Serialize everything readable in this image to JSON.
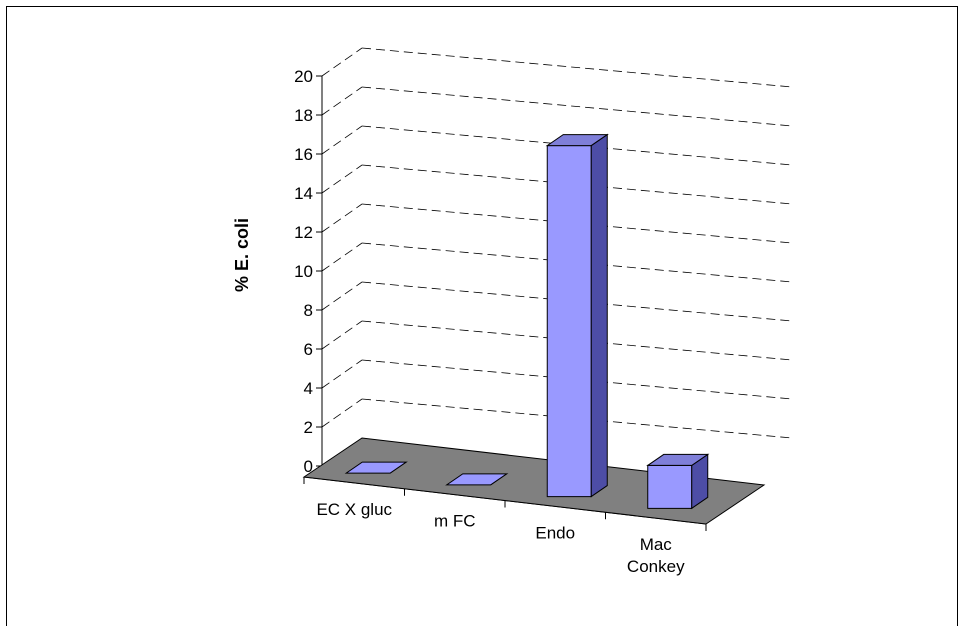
{
  "chart_data": {
    "type": "bar",
    "subtype": "3d-column",
    "categories": [
      "EC X gluc",
      "m FC",
      "Endo",
      "Mac Conkey"
    ],
    "category_lines": [
      [
        "EC X gluc"
      ],
      [
        "m FC"
      ],
      [
        "Endo"
      ],
      [
        "Mac",
        "Conkey"
      ]
    ],
    "values": [
      0,
      0,
      18,
      2.2
    ],
    "ylabel": "% E. coli",
    "xlabel": "",
    "ylim": [
      0,
      20
    ],
    "yticks": [
      "0",
      "2",
      "4",
      "6",
      "8",
      "10",
      "12",
      "14",
      "16",
      "18",
      "20"
    ],
    "grid": true,
    "legend": "none"
  },
  "colors": {
    "bar_front": "#9999ff",
    "bar_side": "#4d4da6",
    "bar_top": "#7f7fd9",
    "floor": "#808080",
    "gridline": "#000000"
  }
}
